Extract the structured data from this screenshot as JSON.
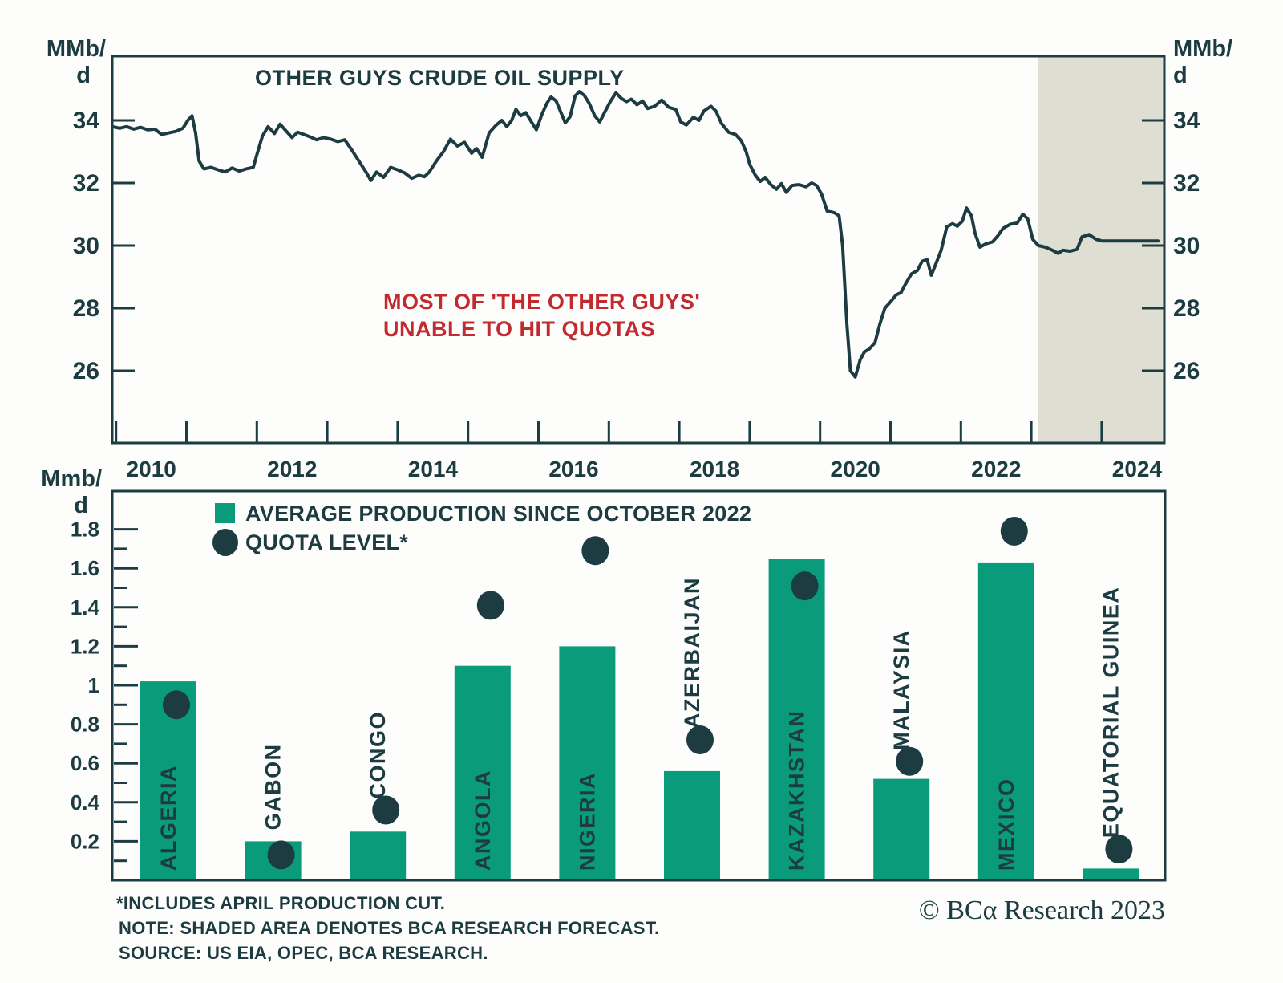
{
  "colors": {
    "dark": "#1c3c42",
    "green": "#0a9b7a",
    "red": "#c22a30",
    "shade": "#dfded2",
    "background": "#fdfdfc"
  },
  "units": {
    "top_left_1": "MMb/",
    "top_left_2": "d",
    "top_right_1": "MMb/",
    "top_right_2": "d",
    "bottom_left_1": "Mmb/",
    "bottom_left_2": "d"
  },
  "footer": {
    "notes": [
      "*INCLUDES APRIL PRODUCTION CUT.",
      "NOTE: SHADED AREA DENOTES BCA RESEARCH FORECAST.",
      "SOURCE: US EIA, OPEC, BCA RESEARCH."
    ],
    "copyright": "© BCα Research 2023"
  },
  "chart_data": [
    {
      "type": "line",
      "title": "OTHER GUYS CRUDE OIL SUPPLY",
      "annotation_line1": "MOST OF 'THE OTHER GUYS'",
      "annotation_line2": "UNABLE TO HIT QUOTAS",
      "ylabel": "MMb/d",
      "xlabel": "",
      "ylim": [
        23.7,
        36.0
      ],
      "xlim": [
        2009.9,
        2024.9
      ],
      "y_ticks": [
        26,
        28,
        30,
        32,
        34
      ],
      "x_tick_labels": [
        2010,
        2012,
        2014,
        2016,
        2018,
        2020,
        2022,
        2024
      ],
      "grid": false,
      "forecast_start": 2023.1,
      "forecast_note": "SHADED AREA DENOTES BCA RESEARCH FORECAST",
      "series": [
        {
          "name": "Other guys crude oil supply",
          "points": [
            [
              2009.95,
              33.8
            ],
            [
              2010.05,
              33.75
            ],
            [
              2010.15,
              33.8
            ],
            [
              2010.25,
              33.72
            ],
            [
              2010.35,
              33.78
            ],
            [
              2010.45,
              33.7
            ],
            [
              2010.55,
              33.72
            ],
            [
              2010.65,
              33.55
            ],
            [
              2010.75,
              33.6
            ],
            [
              2010.85,
              33.65
            ],
            [
              2010.95,
              33.75
            ],
            [
              2011.02,
              34.0
            ],
            [
              2011.08,
              34.15
            ],
            [
              2011.13,
              33.6
            ],
            [
              2011.18,
              32.7
            ],
            [
              2011.25,
              32.45
            ],
            [
              2011.35,
              32.5
            ],
            [
              2011.45,
              32.42
            ],
            [
              2011.55,
              32.35
            ],
            [
              2011.65,
              32.48
            ],
            [
              2011.75,
              32.38
            ],
            [
              2011.85,
              32.45
            ],
            [
              2011.95,
              32.5
            ],
            [
              2012.0,
              32.9
            ],
            [
              2012.08,
              33.5
            ],
            [
              2012.16,
              33.8
            ],
            [
              2012.25,
              33.58
            ],
            [
              2012.33,
              33.88
            ],
            [
              2012.42,
              33.65
            ],
            [
              2012.5,
              33.45
            ],
            [
              2012.58,
              33.62
            ],
            [
              2012.67,
              33.55
            ],
            [
              2012.75,
              33.48
            ],
            [
              2012.85,
              33.38
            ],
            [
              2012.95,
              33.45
            ],
            [
              2013.05,
              33.4
            ],
            [
              2013.15,
              33.32
            ],
            [
              2013.25,
              33.38
            ],
            [
              2013.35,
              33.05
            ],
            [
              2013.45,
              32.7
            ],
            [
              2013.55,
              32.35
            ],
            [
              2013.62,
              32.08
            ],
            [
              2013.7,
              32.35
            ],
            [
              2013.8,
              32.18
            ],
            [
              2013.9,
              32.5
            ],
            [
              2014.0,
              32.42
            ],
            [
              2014.1,
              32.32
            ],
            [
              2014.2,
              32.15
            ],
            [
              2014.3,
              32.25
            ],
            [
              2014.38,
              32.2
            ],
            [
              2014.45,
              32.35
            ],
            [
              2014.55,
              32.7
            ],
            [
              2014.65,
              33.0
            ],
            [
              2014.75,
              33.4
            ],
            [
              2014.85,
              33.18
            ],
            [
              2014.95,
              33.3
            ],
            [
              2015.05,
              32.95
            ],
            [
              2015.12,
              33.1
            ],
            [
              2015.2,
              32.82
            ],
            [
              2015.3,
              33.6
            ],
            [
              2015.4,
              33.85
            ],
            [
              2015.48,
              34.0
            ],
            [
              2015.55,
              33.8
            ],
            [
              2015.62,
              34.0
            ],
            [
              2015.68,
              34.35
            ],
            [
              2015.75,
              34.15
            ],
            [
              2015.82,
              34.25
            ],
            [
              2015.9,
              33.95
            ],
            [
              2015.97,
              33.7
            ],
            [
              2016.05,
              34.2
            ],
            [
              2016.12,
              34.55
            ],
            [
              2016.18,
              34.75
            ],
            [
              2016.25,
              34.62
            ],
            [
              2016.32,
              34.25
            ],
            [
              2016.38,
              33.92
            ],
            [
              2016.45,
              34.12
            ],
            [
              2016.52,
              34.78
            ],
            [
              2016.58,
              34.92
            ],
            [
              2016.65,
              34.8
            ],
            [
              2016.72,
              34.55
            ],
            [
              2016.8,
              34.15
            ],
            [
              2016.87,
              33.95
            ],
            [
              2016.95,
              34.3
            ],
            [
              2017.02,
              34.6
            ],
            [
              2017.1,
              34.88
            ],
            [
              2017.18,
              34.7
            ],
            [
              2017.25,
              34.6
            ],
            [
              2017.32,
              34.68
            ],
            [
              2017.4,
              34.5
            ],
            [
              2017.48,
              34.62
            ],
            [
              2017.55,
              34.38
            ],
            [
              2017.65,
              34.45
            ],
            [
              2017.75,
              34.65
            ],
            [
              2017.85,
              34.42
            ],
            [
              2017.95,
              34.35
            ],
            [
              2018.02,
              33.95
            ],
            [
              2018.1,
              33.85
            ],
            [
              2018.2,
              34.1
            ],
            [
              2018.28,
              34.0
            ],
            [
              2018.35,
              34.3
            ],
            [
              2018.45,
              34.45
            ],
            [
              2018.52,
              34.3
            ],
            [
              2018.6,
              33.9
            ],
            [
              2018.7,
              33.62
            ],
            [
              2018.8,
              33.55
            ],
            [
              2018.88,
              33.35
            ],
            [
              2018.95,
              33.0
            ],
            [
              2019.0,
              32.6
            ],
            [
              2019.08,
              32.25
            ],
            [
              2019.15,
              32.05
            ],
            [
              2019.22,
              32.18
            ],
            [
              2019.3,
              31.95
            ],
            [
              2019.38,
              31.8
            ],
            [
              2019.45,
              31.98
            ],
            [
              2019.52,
              31.7
            ],
            [
              2019.6,
              31.92
            ],
            [
              2019.7,
              31.95
            ],
            [
              2019.8,
              31.88
            ],
            [
              2019.88,
              32.0
            ],
            [
              2019.95,
              31.92
            ],
            [
              2020.02,
              31.65
            ],
            [
              2020.1,
              31.1
            ],
            [
              2020.2,
              31.05
            ],
            [
              2020.27,
              30.95
            ],
            [
              2020.32,
              30.0
            ],
            [
              2020.38,
              27.5
            ],
            [
              2020.43,
              26.0
            ],
            [
              2020.5,
              25.8
            ],
            [
              2020.57,
              26.35
            ],
            [
              2020.63,
              26.6
            ],
            [
              2020.7,
              26.7
            ],
            [
              2020.78,
              26.9
            ],
            [
              2020.85,
              27.5
            ],
            [
              2020.92,
              28.0
            ],
            [
              2021.0,
              28.2
            ],
            [
              2021.08,
              28.42
            ],
            [
              2021.15,
              28.5
            ],
            [
              2021.22,
              28.8
            ],
            [
              2021.3,
              29.1
            ],
            [
              2021.38,
              29.2
            ],
            [
              2021.45,
              29.5
            ],
            [
              2021.52,
              29.55
            ],
            [
              2021.58,
              29.05
            ],
            [
              2021.65,
              29.45
            ],
            [
              2021.72,
              29.85
            ],
            [
              2021.8,
              30.6
            ],
            [
              2021.88,
              30.7
            ],
            [
              2021.95,
              30.62
            ],
            [
              2022.02,
              30.78
            ],
            [
              2022.08,
              31.2
            ],
            [
              2022.15,
              30.95
            ],
            [
              2022.2,
              30.4
            ],
            [
              2022.27,
              29.95
            ],
            [
              2022.35,
              30.05
            ],
            [
              2022.45,
              30.12
            ],
            [
              2022.52,
              30.3
            ],
            [
              2022.6,
              30.55
            ],
            [
              2022.7,
              30.68
            ],
            [
              2022.8,
              30.72
            ],
            [
              2022.88,
              31.0
            ],
            [
              2022.95,
              30.85
            ],
            [
              2023.02,
              30.2
            ],
            [
              2023.1,
              30.0
            ],
            [
              2023.2,
              29.95
            ],
            [
              2023.3,
              29.85
            ],
            [
              2023.38,
              29.75
            ],
            [
              2023.45,
              29.85
            ],
            [
              2023.55,
              29.82
            ],
            [
              2023.65,
              29.88
            ],
            [
              2023.72,
              30.28
            ],
            [
              2023.82,
              30.35
            ],
            [
              2023.92,
              30.2
            ],
            [
              2024.0,
              30.15
            ],
            [
              2024.2,
              30.15
            ],
            [
              2024.5,
              30.15
            ],
            [
              2024.8,
              30.15
            ]
          ]
        }
      ]
    },
    {
      "type": "bar",
      "ylabel": "Mmb/d",
      "ylim": [
        0,
        1.9
      ],
      "y_major_ticks": [
        0.2,
        0.4,
        0.6,
        0.8,
        1.0,
        1.2,
        1.4,
        1.6,
        1.8
      ],
      "grid": false,
      "legend_position": "top-left",
      "categories": [
        "ALGERIA",
        "GABON",
        "CONGO",
        "ANGOLA",
        "NIGERIA",
        "AZERBAIJAN",
        "KAZAKHSTAN",
        "MALAYSIA",
        "MEXICO",
        "EQUATORIAL GUINEA"
      ],
      "series": [
        {
          "name": "AVERAGE PRODUCTION SINCE OCTOBER 2022",
          "marker": "bar",
          "color": "#0a9b7a",
          "values": [
            1.02,
            0.2,
            0.25,
            1.1,
            1.2,
            0.56,
            1.65,
            0.52,
            1.63,
            0.06
          ]
        },
        {
          "name": "QUOTA LEVEL*",
          "marker": "circle",
          "color": "#1c3c42",
          "values": [
            0.9,
            0.13,
            0.36,
            1.41,
            1.69,
            0.72,
            1.51,
            0.61,
            1.79,
            0.16
          ]
        }
      ]
    }
  ]
}
